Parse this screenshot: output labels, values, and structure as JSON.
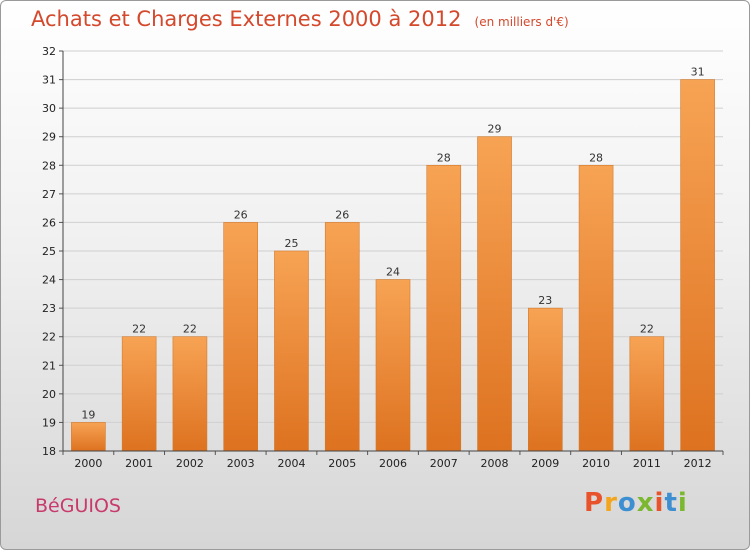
{
  "title": "Achats et Charges Externes 2000 à 2012",
  "unit": "(en milliers d'€)",
  "commune": "BéGUIOS",
  "brand": {
    "letters": [
      "P",
      "r",
      "o",
      "x",
      "i",
      "t",
      "i"
    ],
    "colors": [
      "#e8532c",
      "#f3a61d",
      "#3e8fd1",
      "#7cb82f",
      "#e8532c",
      "#3e8fd1",
      "#7cb82f"
    ]
  },
  "colors": {
    "bar_top": "#f7a354",
    "bar_bottom": "#dd7220",
    "title": "#d4482c"
  },
  "chart_data": {
    "type": "bar",
    "categories": [
      "2000",
      "2001",
      "2002",
      "2003",
      "2004",
      "2005",
      "2006",
      "2007",
      "2008",
      "2009",
      "2010",
      "2011",
      "2012"
    ],
    "values": [
      19,
      22,
      22,
      26,
      25,
      26,
      24,
      28,
      29,
      23,
      28,
      22,
      31
    ],
    "title": "Achats et Charges Externes 2000 à 2012",
    "xlabel": "",
    "ylabel": "",
    "ylim": [
      18,
      32
    ],
    "yticks": [
      18,
      19,
      20,
      21,
      22,
      23,
      24,
      25,
      26,
      27,
      28,
      29,
      30,
      31,
      32
    ],
    "grid": true
  }
}
